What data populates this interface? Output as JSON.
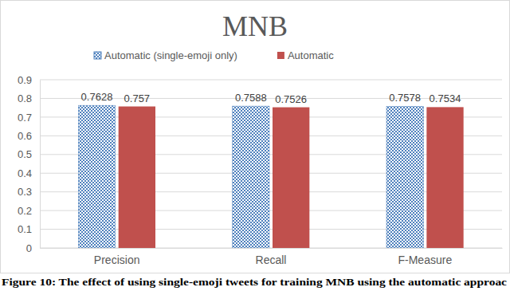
{
  "chart_data": {
    "type": "bar",
    "title": "MNB",
    "caption": "Figure 10: The effect of using single-emoji tweets for training MNB using the automatic approac",
    "categories": [
      "Precision",
      "Recall",
      "F-Measure"
    ],
    "series": [
      {
        "name": "Automatic (single-emoji only)",
        "color": "#4f81bd",
        "values": [
          0.7628,
          0.7588,
          0.7578
        ]
      },
      {
        "name": "Automatic",
        "color": "#c0504d",
        "values": [
          0.757,
          0.7526,
          0.7534
        ]
      }
    ],
    "ylim": [
      0,
      0.9
    ],
    "yticks": [
      0,
      0.1,
      0.2,
      0.3,
      0.4,
      0.5,
      0.6,
      0.7,
      0.8,
      0.9
    ],
    "grid": true,
    "data_labels": true,
    "legend": "top"
  }
}
